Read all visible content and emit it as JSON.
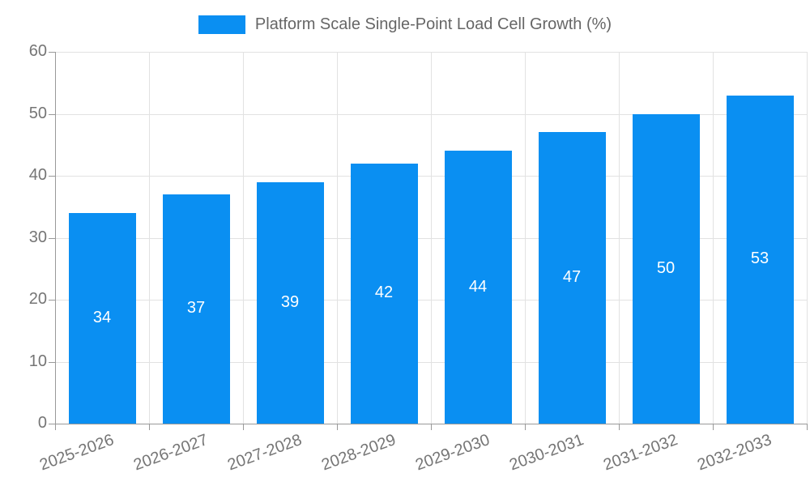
{
  "legend": {
    "label": "Platform Scale Single-Point Load Cell Growth (%)"
  },
  "chart_data": {
    "type": "bar",
    "title": "Platform Scale Single-Point Load Cell Growth (%)",
    "categories": [
      "2025-2026",
      "2026-2027",
      "2027-2028",
      "2028-2029",
      "2029-2030",
      "2030-2031",
      "2031-2032",
      "2032-2033"
    ],
    "values": [
      34,
      37,
      39,
      42,
      44,
      47,
      50,
      53
    ],
    "value_labels": [
      "34",
      "37",
      "39",
      "42",
      "44",
      "47",
      "50",
      "53"
    ],
    "xlabel": "",
    "ylabel": "",
    "ylim": [
      0,
      60
    ],
    "yticks": [
      0,
      10,
      20,
      30,
      40,
      50,
      60
    ],
    "grid": true,
    "legend_position": "top",
    "xtick_rotation_deg": -20,
    "colors": {
      "bar": "#0a8ff2",
      "axis_line": "#999999",
      "gridline": "#e2e2e2",
      "tick_label": "#757575",
      "legend_text": "#666666",
      "value_label": "#ffffff",
      "background": "#ffffff"
    }
  }
}
